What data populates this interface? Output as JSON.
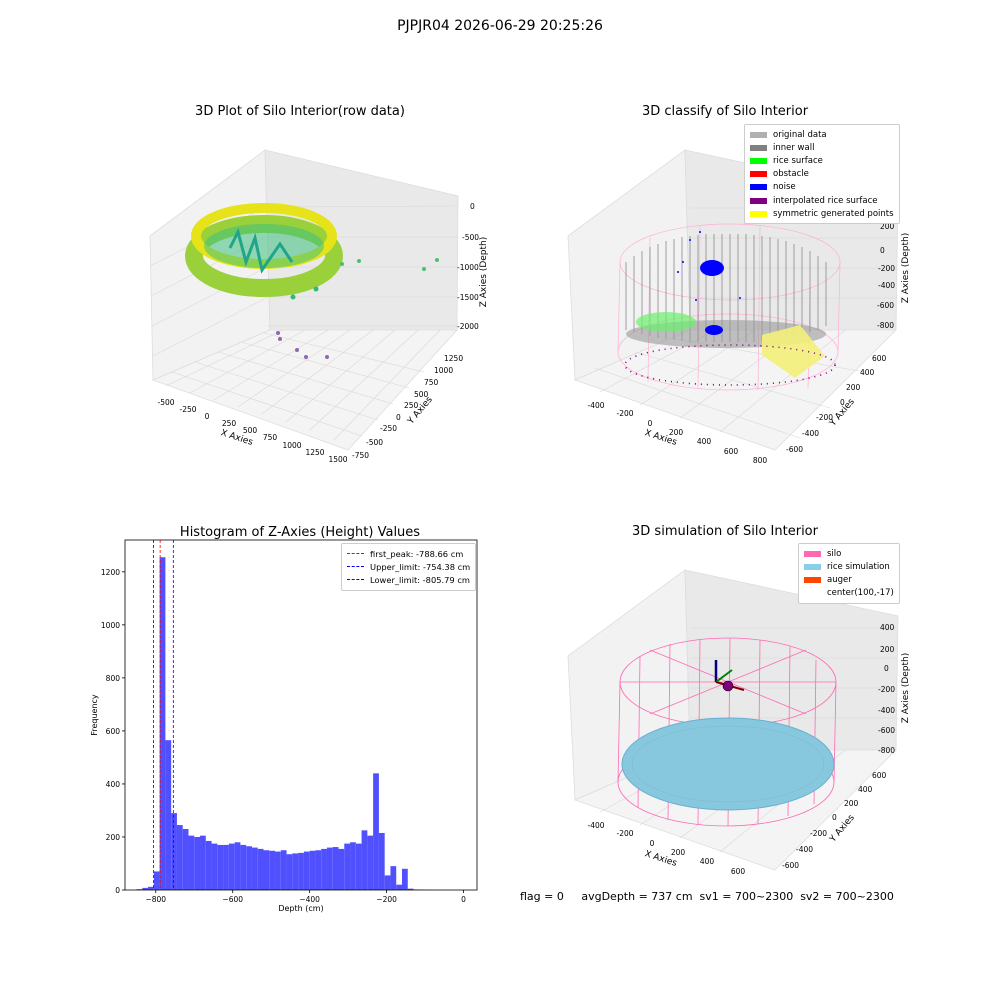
{
  "suptitle": "PJPJR04 2026-06-29 20:25:26",
  "panels": {
    "raw": {
      "title": "3D Plot of Silo Interior(row data)",
      "xlabel": "X Axies",
      "ylabel": "Y Axies",
      "zlabel": "Z Axies (Depth)",
      "xticks": [
        "-500",
        "-250",
        "0",
        "250",
        "500",
        "750",
        "1000",
        "1250",
        "1500"
      ],
      "yticks": [
        "-750",
        "-500",
        "-250",
        "0",
        "250",
        "500",
        "750",
        "1000",
        "1250"
      ],
      "zticks": [
        "0",
        "-500",
        "-1000",
        "-1500",
        "-2000"
      ]
    },
    "classify": {
      "title": "3D classify of Silo Interior",
      "xlabel": "X Axies",
      "ylabel": "Y Axies",
      "zlabel": "Z Axies (Depth)",
      "xticks": [
        "-400",
        "-200",
        "0",
        "200",
        "400",
        "600",
        "800"
      ],
      "yticks": [
        "-600",
        "-400",
        "-200",
        "0",
        "200",
        "400",
        "600"
      ],
      "zticks": [
        "200",
        "0",
        "-200",
        "-400",
        "-600",
        "-800"
      ],
      "legend": [
        {
          "label": "original data",
          "color": "#b0b0b0"
        },
        {
          "label": "inner wall",
          "color": "#808080"
        },
        {
          "label": "rice surface",
          "color": "#00ff00"
        },
        {
          "label": "obstacle",
          "color": "#ff0000"
        },
        {
          "label": "noise",
          "color": "#0000ff"
        },
        {
          "label": "interpolated rice surface",
          "color": "#800080"
        },
        {
          "label": "symmetric generated points",
          "color": "#ffff00"
        }
      ]
    },
    "simulation": {
      "title": "3D simulation of Silo Interior",
      "xlabel": "X Axies",
      "ylabel": "Y Axies",
      "zlabel": "Z Axies (Depth)",
      "xticks": [
        "-400",
        "-200",
        "0",
        "200",
        "400",
        "600"
      ],
      "yticks": [
        "-600",
        "-400",
        "-200",
        "0",
        "200",
        "400",
        "600"
      ],
      "zticks": [
        "400",
        "200",
        "0",
        "-200",
        "-400",
        "-600",
        "-800"
      ],
      "legend": [
        {
          "label": "silo",
          "color": "#ff69b4"
        },
        {
          "label": "rice simulation",
          "color": "#87ceeb"
        },
        {
          "label": "auger",
          "color": "#ff4500"
        },
        {
          "label": "center(100,-17)",
          "color": ""
        }
      ]
    }
  },
  "stats": {
    "text": "flag = 0     avgDepth = 737 cm  sv1 = 700~2300  sv2 = 700~2300"
  },
  "chart_data": {
    "type": "bar",
    "title": "Histogram of Z-Axies (Height) Values",
    "xlabel": "Depth (cm)",
    "ylabel": "Frequency",
    "xlim": [
      -880,
      35
    ],
    "ylim": [
      0,
      1320
    ],
    "xticks": [
      -800,
      -600,
      -400,
      -200,
      0
    ],
    "yticks": [
      0,
      200,
      400,
      600,
      800,
      1000,
      1200
    ],
    "bin_width": 15,
    "color": "#5050ff",
    "bin_starts": [
      -850,
      -835,
      -820,
      -805,
      -790,
      -775,
      -760,
      -745,
      -730,
      -715,
      -700,
      -685,
      -670,
      -655,
      -640,
      -625,
      -610,
      -595,
      -580,
      -565,
      -550,
      -535,
      -520,
      -505,
      -490,
      -475,
      -460,
      -445,
      -430,
      -415,
      -400,
      -385,
      -370,
      -355,
      -340,
      -325,
      -310,
      -295,
      -280,
      -265,
      -250,
      -235,
      -220,
      -205,
      -190,
      -175,
      -160,
      -145,
      -130,
      -115,
      -100,
      -85,
      -70,
      -55,
      -40,
      -25,
      -10
    ],
    "counts": [
      3,
      8,
      12,
      70,
      1255,
      565,
      290,
      245,
      230,
      205,
      200,
      205,
      185,
      175,
      170,
      170,
      175,
      180,
      170,
      165,
      160,
      155,
      150,
      148,
      145,
      150,
      135,
      138,
      140,
      145,
      148,
      150,
      155,
      160,
      162,
      155,
      175,
      180,
      175,
      225,
      205,
      440,
      215,
      55,
      90,
      20,
      80,
      5,
      2,
      1,
      0,
      0,
      0,
      0,
      0,
      0,
      0
    ],
    "lines": [
      {
        "label": "first_peak: -788.66 cm",
        "x": -788.66,
        "color": "#ff0000"
      },
      {
        "label": "Upper_limit: -754.38 cm",
        "x": -754.38,
        "color": "#0000ff"
      },
      {
        "label": "Lower_limit: -805.79 cm",
        "x": -805.79,
        "color": "#0000ff"
      }
    ]
  }
}
